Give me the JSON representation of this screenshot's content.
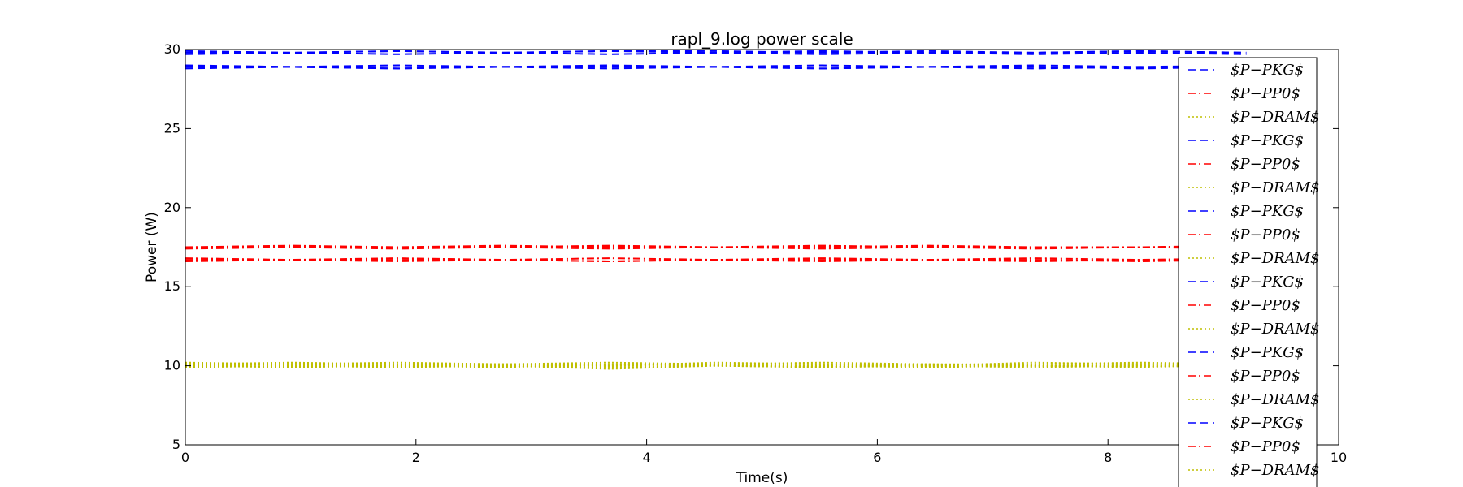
{
  "chart_data": {
    "type": "line",
    "title": "rapl_9.log power scale",
    "xlabel": "Time(s)",
    "ylabel": "Power (W)",
    "xlim": [
      0,
      10
    ],
    "ylim": [
      5,
      30
    ],
    "xticks": [
      "0",
      "2",
      "4",
      "6",
      "8",
      "10"
    ],
    "yticks": [
      "5",
      "10",
      "15",
      "20",
      "25",
      "30"
    ],
    "grid": false,
    "legend_position": "right",
    "x_end": 9.2,
    "series": [
      {
        "name": "$P−PKG$",
        "color": "#0000ff",
        "style": "dashed",
        "values": [
          29.8,
          29.8,
          29.9,
          29.8,
          29.9,
          29.8,
          29.9,
          29.8,
          29.8,
          29.9,
          29.8
        ]
      },
      {
        "name": "$P−PP0$",
        "color": "#ff0000",
        "style": "dashdot",
        "values": [
          17.5,
          17.5,
          17.5,
          17.6,
          17.5,
          17.5,
          17.6,
          17.5,
          17.5,
          17.5,
          17.5
        ]
      },
      {
        "name": "$P−DRAM$",
        "color": "#bfbf00",
        "style": "dotted",
        "values": [
          10.1,
          10.1,
          10.0,
          10.1,
          10.2,
          10.1,
          10.0,
          10.1,
          10.1,
          10.2,
          10.1
        ]
      },
      {
        "name": "$P−PKG$",
        "color": "#0000ff",
        "style": "dashed",
        "values": [
          28.9,
          28.9,
          28.8,
          28.9,
          28.9,
          28.9,
          28.8,
          28.9,
          28.9,
          28.8,
          28.9
        ]
      },
      {
        "name": "$P−PP0$",
        "color": "#ff0000",
        "style": "dashdot",
        "values": [
          16.7,
          16.7,
          16.7,
          16.7,
          16.6,
          16.7,
          16.7,
          16.7,
          16.7,
          16.6,
          16.7
        ]
      },
      {
        "name": "$P−DRAM$",
        "color": "#bfbf00",
        "style": "dotted",
        "values": [
          10.0,
          9.9,
          10.0,
          10.0,
          9.9,
          10.0,
          10.0,
          9.9,
          10.0,
          10.0,
          9.9
        ]
      },
      {
        "name": "$P−PKG$",
        "color": "#0000ff",
        "style": "dashed",
        "values": [
          29.7,
          29.8,
          29.7,
          29.8,
          29.7,
          29.8,
          29.7,
          29.8,
          29.7,
          29.8,
          29.7
        ]
      },
      {
        "name": "$P−PP0$",
        "color": "#ff0000",
        "style": "dashdot",
        "values": [
          17.4,
          17.5,
          17.4,
          17.5,
          17.4,
          17.5,
          17.4,
          17.5,
          17.4,
          17.5,
          17.4
        ]
      },
      {
        "name": "$P−DRAM$",
        "color": "#bfbf00",
        "style": "dotted",
        "values": [
          10.2,
          10.1,
          10.2,
          10.1,
          10.0,
          10.1,
          10.2,
          10.1,
          10.0,
          10.1,
          10.2
        ]
      },
      {
        "name": "$P−PKG$",
        "color": "#0000ff",
        "style": "dashed",
        "values": [
          29.0,
          28.9,
          29.0,
          28.9,
          29.0,
          28.9,
          29.0,
          28.9,
          29.0,
          28.9,
          29.0
        ]
      },
      {
        "name": "$P−PP0$",
        "color": "#ff0000",
        "style": "dashdot",
        "values": [
          16.8,
          16.7,
          16.8,
          16.7,
          16.8,
          16.7,
          16.8,
          16.7,
          16.8,
          16.7,
          16.8
        ]
      },
      {
        "name": "$P−DRAM$",
        "color": "#bfbf00",
        "style": "dotted",
        "values": [
          9.9,
          10.0,
          9.9,
          10.0,
          9.8,
          10.0,
          9.9,
          10.0,
          9.9,
          10.0,
          9.9
        ]
      },
      {
        "name": "$P−PKG$",
        "color": "#0000ff",
        "style": "dashed",
        "values": [
          29.9,
          29.8,
          29.9,
          29.8,
          29.9,
          29.9,
          29.8,
          29.9,
          29.8,
          29.9,
          29.8
        ]
      },
      {
        "name": "$P−PP0$",
        "color": "#ff0000",
        "style": "dashdot",
        "values": [
          17.5,
          17.6,
          17.5,
          17.5,
          17.6,
          17.5,
          17.5,
          17.6,
          17.5,
          17.5,
          17.6
        ]
      },
      {
        "name": "$P−DRAM$",
        "color": "#bfbf00",
        "style": "dotted",
        "values": [
          10.1,
          10.2,
          10.1,
          10.1,
          10.0,
          10.2,
          10.1,
          10.0,
          10.2,
          10.1,
          10.0
        ]
      },
      {
        "name": "$P−PKG$",
        "color": "#0000ff",
        "style": "dashed",
        "values": [
          28.8,
          28.9,
          28.8,
          28.9,
          28.8,
          28.9,
          28.8,
          28.9,
          28.8,
          28.9,
          28.8
        ]
      },
      {
        "name": "$P−PP0$",
        "color": "#ff0000",
        "style": "dashdot",
        "values": [
          16.6,
          16.7,
          16.6,
          16.7,
          16.6,
          16.7,
          16.6,
          16.7,
          16.6,
          16.7,
          16.6
        ]
      },
      {
        "name": "$P−DRAM$",
        "color": "#bfbf00",
        "style": "dotted",
        "values": [
          10.0,
          10.1,
          10.0,
          9.9,
          10.1,
          10.0,
          9.9,
          10.1,
          10.0,
          9.9,
          10.1
        ]
      }
    ]
  }
}
